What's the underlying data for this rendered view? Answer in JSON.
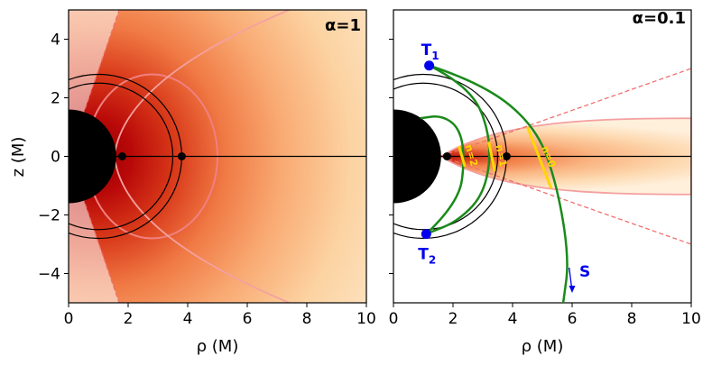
{
  "chart_data": [
    {
      "type": "heatmap",
      "panel_title": "α=1",
      "xlabel": "ρ (M)",
      "ylabel": "z (M)",
      "xlim": [
        0,
        10
      ],
      "ylim": [
        -5,
        5
      ],
      "xticks": [
        "0",
        "2",
        "4",
        "6",
        "8",
        "10"
      ],
      "yticks": [
        "−4",
        "−2",
        "0",
        "2",
        "4"
      ],
      "colormap": "OrRd",
      "black_hole_radius": 1.6,
      "isco_points": [
        {
          "x": 1.8,
          "y": 0
        },
        {
          "x": 3.8,
          "y": 0
        }
      ],
      "crescent_circles": [
        {
          "cx": 1.0,
          "r": 2.8
        },
        {
          "cx": 1.0,
          "r": 2.5
        }
      ],
      "contours": [
        {
          "color": "#f08080",
          "shape": "ellipse",
          "center": [
            2.8,
            0
          ],
          "semi_axes": [
            2.2,
            2.8
          ]
        },
        {
          "color": "#f4a0a0",
          "shape": "envelope",
          "vertex": [
            1.6,
            0
          ],
          "reach_x": 10,
          "half_height": 5.0
        }
      ],
      "cone_lines_dashed": [
        [
          [
            0,
            0
          ],
          [
            1.7,
            5.0
          ]
        ],
        [
          [
            0,
            0
          ],
          [
            1.7,
            -5.0
          ]
        ]
      ]
    },
    {
      "type": "heatmap",
      "panel_title": "α=0.1",
      "xlabel": "ρ (M)",
      "xlim": [
        0,
        10
      ],
      "ylim": [
        -5,
        5
      ],
      "xticks": [
        "0",
        "2",
        "4",
        "6",
        "8",
        "10"
      ],
      "colormap": "OrRd",
      "black_hole_radius": 1.6,
      "isco_points": [
        {
          "x": 1.8,
          "y": 0
        },
        {
          "x": 3.8,
          "y": 0
        }
      ],
      "crescent_circles": [
        {
          "cx": 1.0,
          "r": 2.8
        },
        {
          "cx": 1.0,
          "r": 2.5
        }
      ],
      "contours": [
        {
          "color": "#f4a0a0",
          "shape": "disk",
          "vertex": [
            1.6,
            0
          ],
          "half_height_at_edge": 1.3
        }
      ],
      "cone_lines_dashed": [
        [
          [
            1.6,
            0
          ],
          [
            10,
            3.0
          ]
        ],
        [
          [
            1.6,
            0
          ],
          [
            10,
            -3.0
          ]
        ]
      ],
      "points": [
        {
          "label": "T",
          "sub": "1",
          "x": 1.2,
          "y": 3.1,
          "color": "#0000ee"
        },
        {
          "label": "T",
          "sub": "2",
          "x": 1.1,
          "y": -2.65,
          "color": "#0000ee"
        }
      ],
      "rays": [
        {
          "color": "#1a8a1a",
          "points": [
            [
              1.2,
              3.1
            ],
            [
              3.0,
              2.5
            ],
            [
              4.8,
              1.0
            ],
            [
              5.5,
              -1.0
            ],
            [
              5.9,
              -3.5
            ],
            [
              5.7,
              -5.0
            ]
          ]
        },
        {
          "color": "#1a8a1a",
          "points": [
            [
              1.2,
              3.1
            ],
            [
              2.6,
              2.4
            ],
            [
              3.3,
              0.6
            ],
            [
              3.1,
              -1.2
            ],
            [
              2.2,
              -2.2
            ],
            [
              1.1,
              -2.65
            ]
          ]
        },
        {
          "color": "#1a8a1a",
          "points": [
            [
              1.1,
              -2.65
            ],
            [
              2.2,
              -1.6
            ],
            [
              2.4,
              0.0
            ],
            [
              2.2,
              1.0
            ],
            [
              1.6,
              1.4
            ],
            [
              0.9,
              1.3
            ]
          ]
        }
      ],
      "mode_lines": [
        {
          "label": "n=0",
          "from": [
            4.5,
            1.0
          ],
          "to": [
            5.3,
            -1.1
          ]
        },
        {
          "label": "n=1",
          "from": [
            3.2,
            0.5
          ],
          "to": [
            3.4,
            -0.5
          ]
        },
        {
          "label": "n=2",
          "from": [
            2.2,
            0.35
          ],
          "to": [
            2.4,
            -0.35
          ]
        }
      ],
      "source": {
        "label": "S",
        "arrow_from": [
          5.9,
          -3.8
        ],
        "arrow_to": [
          6.0,
          -4.6
        ],
        "color": "#0000ee"
      }
    }
  ]
}
